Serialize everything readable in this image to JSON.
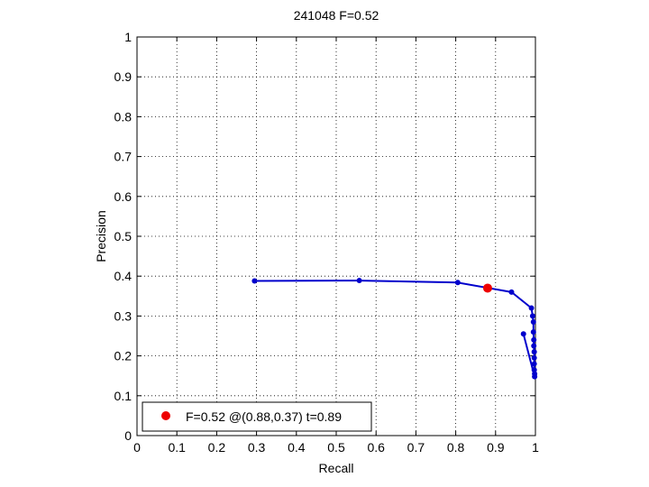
{
  "chart_data": {
    "type": "line",
    "title": "241048 F=0.52",
    "xlabel": "Recall",
    "ylabel": "Precision",
    "xlim": [
      0,
      1
    ],
    "ylim": [
      0,
      1
    ],
    "grid": true,
    "legend_position": "bottom-left",
    "x_ticks": [
      "0",
      "0.1",
      "0.2",
      "0.3",
      "0.4",
      "0.5",
      "0.6",
      "0.7",
      "0.8",
      "0.9",
      "1"
    ],
    "y_ticks": [
      "0",
      "0.1",
      "0.2",
      "0.3",
      "0.4",
      "0.5",
      "0.6",
      "0.7",
      "0.8",
      "0.9",
      "1"
    ],
    "colors": {
      "curve": "#0000cc",
      "best_point": "#ee0000"
    },
    "series": [
      {
        "values": [
          [
            0.295,
            0.388
          ],
          [
            0.558,
            0.389
          ],
          [
            0.805,
            0.384
          ],
          [
            0.94,
            0.36
          ],
          [
            0.99,
            0.32
          ],
          [
            0.993,
            0.3
          ],
          [
            0.995,
            0.285
          ],
          [
            0.995,
            0.26
          ],
          [
            0.996,
            0.24
          ],
          [
            0.996,
            0.225
          ],
          [
            0.997,
            0.21
          ],
          [
            0.997,
            0.195
          ],
          [
            0.997,
            0.18
          ],
          [
            0.997,
            0.165
          ],
          [
            0.998,
            0.155
          ],
          [
            0.998,
            0.148
          ],
          [
            0.97,
            0.255
          ]
        ]
      }
    ],
    "best_point": {
      "recall": 0.88,
      "precision": 0.37,
      "label": "F=0.52 @(0.88,0.37) t=0.89"
    }
  }
}
